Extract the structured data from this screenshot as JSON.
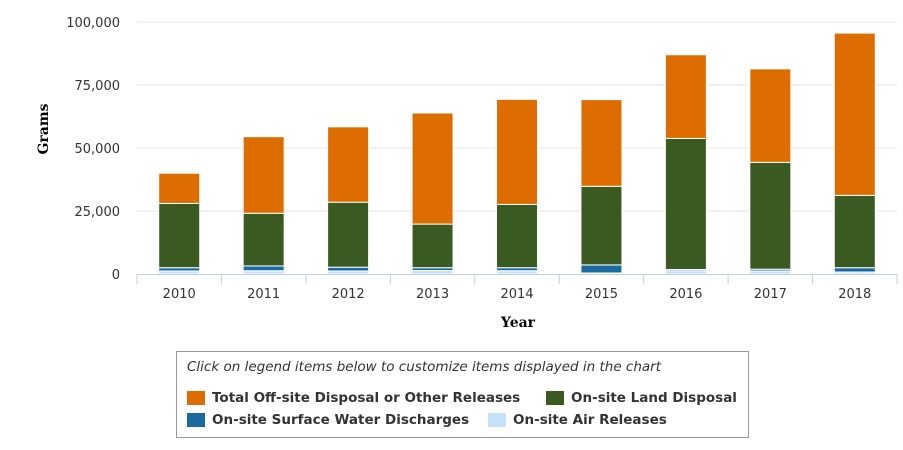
{
  "chart_data": {
    "type": "bar",
    "stacked": true,
    "categories": [
      "2010",
      "2011",
      "2012",
      "2013",
      "2014",
      "2015",
      "2016",
      "2017",
      "2018"
    ],
    "series": [
      {
        "name": "On-site Air Releases",
        "color": "#c6e2fa",
        "values": [
          1200,
          1300,
          1200,
          1400,
          1300,
          400,
          1300,
          1200,
          800
        ]
      },
      {
        "name": "On-site Surface Water Discharges",
        "color": "#1a6aa0",
        "values": [
          1300,
          1900,
          1500,
          1100,
          1200,
          3200,
          500,
          700,
          1700
        ]
      },
      {
        "name": "On-site Land Disposal",
        "color": "#3a5a22",
        "values": [
          25500,
          20900,
          25800,
          17300,
          25100,
          31200,
          52000,
          42400,
          28700
        ]
      },
      {
        "name": "Total Off-site Disposal or Other Releases",
        "color": "#dd6d00",
        "values": [
          12000,
          30400,
          29900,
          44100,
          41700,
          34400,
          33200,
          37100,
          64400
        ]
      }
    ],
    "xlabel": "Year",
    "ylabel": "Grams",
    "ylim": [
      0,
      100000
    ],
    "yticks": [
      "0",
      "25,000",
      "50,000",
      "75,000",
      "100,000"
    ],
    "grid": true
  },
  "legend": {
    "caption": "Click on legend items below to customize items displayed in the chart",
    "items": [
      {
        "label": "Total Off-site Disposal or Other Releases",
        "color": "#dd6d00"
      },
      {
        "label": "On-site Land Disposal",
        "color": "#3a5a22"
      },
      {
        "label": "On-site Surface Water Discharges",
        "color": "#1a6aa0"
      },
      {
        "label": "On-site Air Releases",
        "color": "#c6e2fa"
      }
    ]
  }
}
